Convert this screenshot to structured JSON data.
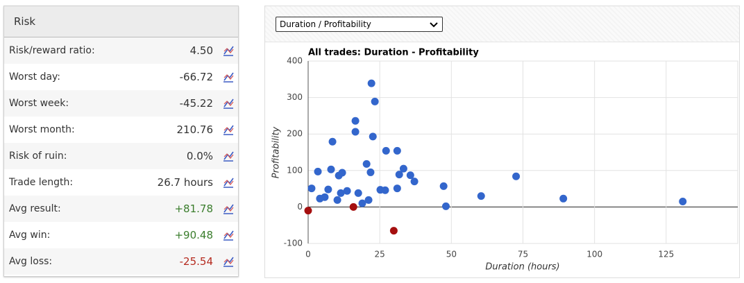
{
  "panel": {
    "title": "Risk",
    "rows": [
      {
        "label": "Risk/reward ratio:",
        "value": "4.50",
        "color": "#333333"
      },
      {
        "label": "Worst day:",
        "value": "-66.72",
        "color": "#333333"
      },
      {
        "label": "Worst week:",
        "value": "-45.22",
        "color": "#333333"
      },
      {
        "label": "Worst month:",
        "value": "210.76",
        "color": "#333333"
      },
      {
        "label": "Risk of ruin:",
        "value": "0.0%",
        "color": "#333333"
      },
      {
        "label": "Trade length:",
        "value": "26.7 hours",
        "color": "#333333"
      },
      {
        "label": "Avg result:",
        "value": "+81.78",
        "color": "#3a7d2c"
      },
      {
        "label": "Avg win:",
        "value": "+90.48",
        "color": "#3a7d2c"
      },
      {
        "label": "Avg loss:",
        "value": "-25.54",
        "color": "#b52a1f"
      }
    ]
  },
  "selector": {
    "selected": "Duration / Profitability"
  },
  "chart_data": {
    "type": "scatter",
    "title": "All trades: Duration - Profitability",
    "x_label": "Duration (hours)",
    "y_label": "Profitability",
    "xlim": [
      0,
      150
    ],
    "xticks": [
      0,
      25,
      50,
      75,
      100,
      125
    ],
    "ylim": [
      -100,
      400
    ],
    "yticks": [
      -100,
      0,
      100,
      200,
      300,
      400
    ],
    "grid": true,
    "series": [
      {
        "color": "#3366cc",
        "x": [
          1.2,
          3.4,
          4.1,
          5.8,
          7.0,
          8.0,
          8.5,
          10.2,
          10.7,
          11.4,
          11.9,
          13.6,
          16.5,
          16.5,
          17.5,
          18.9,
          20.4,
          21.1,
          21.8,
          22.1,
          22.6,
          23.3,
          25.2,
          26.9,
          27.2,
          31.1,
          31.1,
          31.8,
          33.3,
          35.7,
          37.1,
          47.3,
          48.1,
          60.4,
          72.6,
          89.1,
          130.8
        ],
        "values": [
          51,
          97,
          23,
          27,
          48,
          103,
          179,
          19,
          86,
          38,
          94,
          44,
          236,
          206,
          38,
          10,
          118,
          19,
          95,
          339,
          193,
          289,
          47,
          46,
          154,
          51,
          154,
          89,
          105,
          87,
          70,
          57,
          2,
          30,
          84,
          23,
          15
        ]
      },
      {
        "color": "#a50f0f",
        "x": [
          0,
          15.8,
          29.9
        ],
        "values": [
          -10,
          0,
          -65
        ]
      }
    ]
  }
}
